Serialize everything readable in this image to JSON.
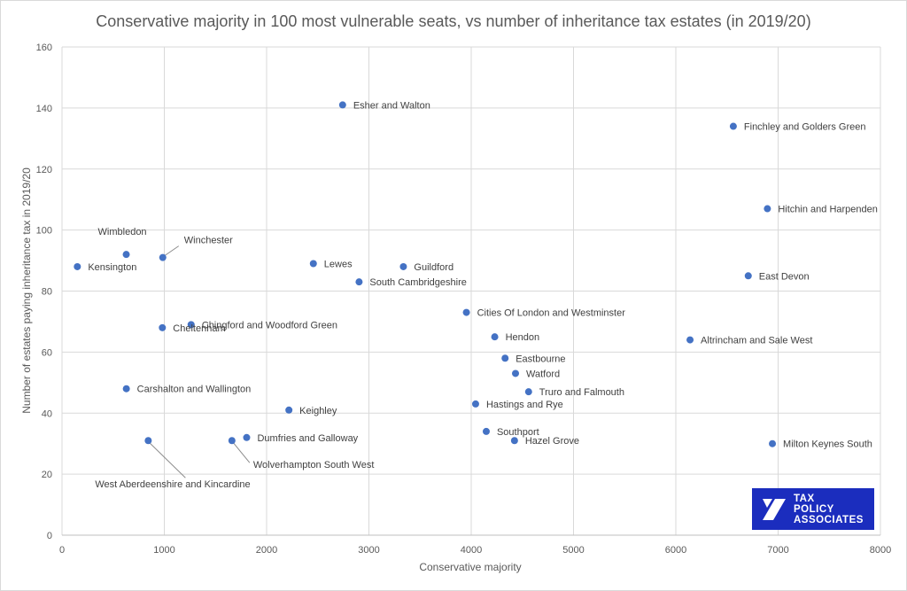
{
  "chart_data": {
    "type": "scatter",
    "title": "Conservative majority in 100 most vulnerable seats, vs number of inheritance tax estates (in 2019/20)",
    "xlabel": "Conservative majority",
    "ylabel": "Number of estates paying inheritance tax in 2019/20",
    "xlim": [
      0,
      8000
    ],
    "ylim": [
      0,
      160
    ],
    "xticks": [
      "0",
      "1000",
      "2000",
      "3000",
      "4000",
      "5000",
      "6000",
      "7000",
      "8000"
    ],
    "yticks": [
      "0",
      "20",
      "40",
      "60",
      "80",
      "100",
      "120",
      "140",
      "160"
    ],
    "grid": true,
    "marker_color": "#4472c4",
    "points": [
      {
        "label": "Esher and Walton",
        "x": 2743,
        "y": 141
      },
      {
        "label": "Finchley and Golders Green",
        "x": 6562,
        "y": 134
      },
      {
        "label": "Hitchin and Harpenden",
        "x": 6895,
        "y": 107
      },
      {
        "label": "Wimbledon",
        "x": 628,
        "y": 92
      },
      {
        "label": "Winchester",
        "x": 985,
        "y": 91
      },
      {
        "label": "Kensington",
        "x": 150,
        "y": 88
      },
      {
        "label": "Lewes",
        "x": 2457,
        "y": 89
      },
      {
        "label": "Guildford",
        "x": 3337,
        "y": 88
      },
      {
        "label": "East Devon",
        "x": 6708,
        "y": 85
      },
      {
        "label": "South Cambridgeshire",
        "x": 2904,
        "y": 83
      },
      {
        "label": "Cities Of London and Westminster",
        "x": 3953,
        "y": 73
      },
      {
        "label": "Chingford and Woodford Green",
        "x": 1262,
        "y": 69
      },
      {
        "label": "Cheltenham",
        "x": 981,
        "y": 68
      },
      {
        "label": "Hendon",
        "x": 4230,
        "y": 65
      },
      {
        "label": "Altrincham and Sale West",
        "x": 6139,
        "y": 64
      },
      {
        "label": "Eastbourne",
        "x": 4331,
        "y": 58
      },
      {
        "label": "Watford",
        "x": 4433,
        "y": 53
      },
      {
        "label": "Carshalton and Wallington",
        "x": 629,
        "y": 48
      },
      {
        "label": "Truro and Falmouth",
        "x": 4561,
        "y": 47
      },
      {
        "label": "Hastings and Rye",
        "x": 4043,
        "y": 43
      },
      {
        "label": "Keighley",
        "x": 2218,
        "y": 41
      },
      {
        "label": "Southport",
        "x": 4147,
        "y": 34
      },
      {
        "label": "Dumfries and Galloway",
        "x": 1805,
        "y": 32
      },
      {
        "label": "Hazel Grove",
        "x": 4423,
        "y": 31
      },
      {
        "label": "West Aberdeenshire and Kincardine",
        "x": 843,
        "y": 31
      },
      {
        "label": "Wolverhampton South West",
        "x": 1661,
        "y": 31
      },
      {
        "label": "Milton Keynes South",
        "x": 6944,
        "y": 30
      }
    ]
  },
  "logo": {
    "line1": "TAX",
    "line2": "POLICY",
    "line3": "ASSOCIATES"
  }
}
